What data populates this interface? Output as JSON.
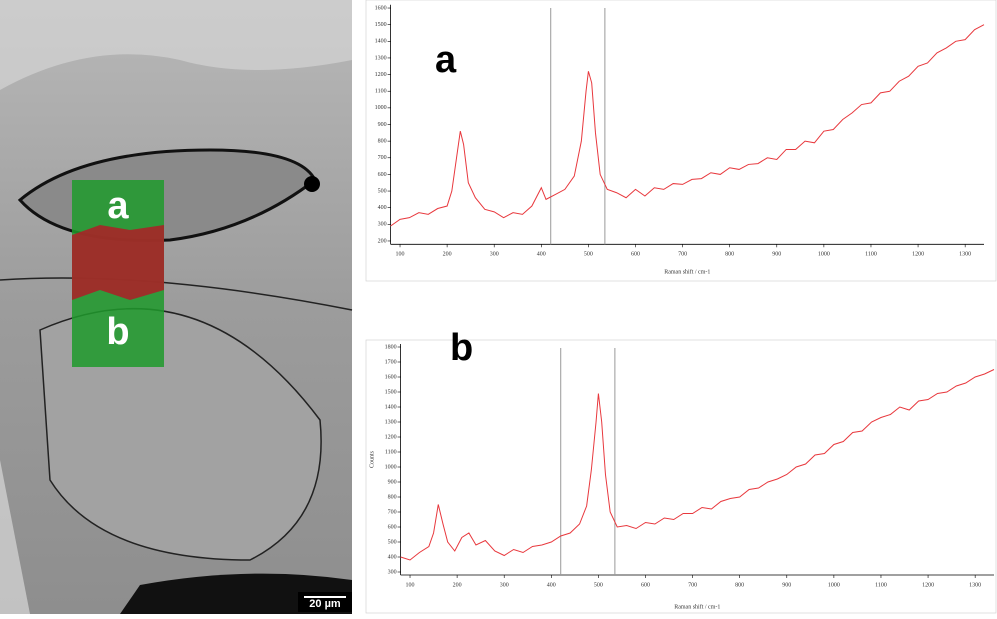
{
  "image": {
    "labels": [
      "a",
      "b"
    ],
    "scale_bar": "20 µm"
  },
  "chart_data": [
    {
      "type": "line",
      "title": "a",
      "x_label": "Raman shift / cm-1",
      "color": "#e8383d",
      "xlim": [
        80,
        1340
      ],
      "xticks": [
        100,
        200,
        300,
        400,
        500,
        600,
        700,
        800,
        900,
        1000,
        1100,
        1200,
        1300
      ],
      "ylim": [
        180,
        1620
      ],
      "yticks": [
        200,
        300,
        400,
        500,
        600,
        700,
        800,
        900,
        1000,
        1100,
        1200,
        1300,
        1400,
        1500,
        1600
      ],
      "vlines": [
        420,
        535
      ],
      "x": [
        80,
        100,
        120,
        140,
        160,
        180,
        200,
        210,
        220,
        228,
        235,
        245,
        260,
        280,
        300,
        320,
        340,
        360,
        380,
        400,
        410,
        430,
        450,
        470,
        485,
        495,
        500,
        507,
        515,
        525,
        540,
        560,
        580,
        600,
        620,
        640,
        660,
        680,
        700,
        720,
        740,
        760,
        780,
        800,
        820,
        840,
        860,
        880,
        900,
        920,
        940,
        960,
        980,
        1000,
        1020,
        1040,
        1060,
        1080,
        1100,
        1120,
        1140,
        1160,
        1180,
        1200,
        1220,
        1240,
        1260,
        1280,
        1300,
        1320,
        1340
      ],
      "values": [
        290,
        330,
        340,
        370,
        360,
        395,
        410,
        500,
        700,
        860,
        780,
        550,
        460,
        390,
        375,
        340,
        370,
        360,
        410,
        520,
        450,
        480,
        510,
        590,
        800,
        1100,
        1220,
        1150,
        850,
        600,
        510,
        490,
        460,
        510,
        470,
        520,
        510,
        545,
        540,
        570,
        575,
        610,
        600,
        640,
        630,
        660,
        665,
        700,
        690,
        750,
        750,
        800,
        790,
        860,
        870,
        930,
        970,
        1020,
        1030,
        1090,
        1100,
        1160,
        1190,
        1250,
        1270,
        1330,
        1360,
        1400,
        1410,
        1470,
        1500
      ]
    },
    {
      "type": "line",
      "title": "b",
      "x_label": "Raman shift / cm-1",
      "y_label": "Counts",
      "color": "#e8383d",
      "xlim": [
        80,
        1340
      ],
      "xticks": [
        100,
        200,
        300,
        400,
        500,
        600,
        700,
        800,
        900,
        1000,
        1100,
        1200,
        1300
      ],
      "ylim": [
        280,
        1820
      ],
      "yticks": [
        300,
        400,
        500,
        600,
        700,
        800,
        900,
        1000,
        1100,
        1200,
        1300,
        1400,
        1500,
        1600,
        1700,
        1800
      ],
      "vlines": [
        420,
        535
      ],
      "x": [
        80,
        100,
        120,
        140,
        150,
        160,
        170,
        180,
        195,
        210,
        225,
        240,
        260,
        280,
        300,
        320,
        340,
        360,
        380,
        400,
        420,
        440,
        460,
        475,
        485,
        495,
        500,
        507,
        515,
        525,
        540,
        560,
        580,
        600,
        620,
        640,
        660,
        680,
        700,
        720,
        740,
        760,
        780,
        800,
        820,
        840,
        860,
        880,
        900,
        920,
        940,
        960,
        980,
        1000,
        1020,
        1040,
        1060,
        1080,
        1100,
        1120,
        1140,
        1160,
        1180,
        1200,
        1220,
        1240,
        1260,
        1280,
        1300,
        1320,
        1340
      ],
      "values": [
        400,
        380,
        430,
        470,
        560,
        750,
        620,
        500,
        440,
        530,
        560,
        480,
        510,
        440,
        410,
        450,
        430,
        470,
        480,
        500,
        540,
        560,
        620,
        740,
        980,
        1300,
        1490,
        1300,
        950,
        700,
        600,
        610,
        590,
        630,
        620,
        660,
        650,
        690,
        690,
        730,
        720,
        770,
        790,
        800,
        850,
        860,
        900,
        920,
        950,
        1000,
        1020,
        1080,
        1090,
        1150,
        1170,
        1230,
        1240,
        1300,
        1330,
        1350,
        1400,
        1380,
        1440,
        1450,
        1490,
        1500,
        1540,
        1560,
        1600,
        1620,
        1650
      ]
    }
  ]
}
